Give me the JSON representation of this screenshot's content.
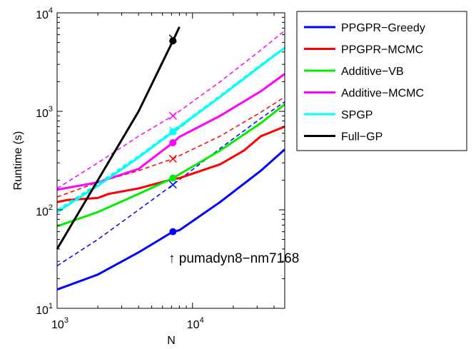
{
  "chart_data": {
    "type": "line",
    "xlabel": "N",
    "ylabel": "Runtime (s)",
    "xscale": "log",
    "yscale": "log",
    "xlim": [
      1000,
      48000
    ],
    "ylim": [
      10,
      10000
    ],
    "xticks": [
      {
        "base": "10",
        "exp": "3"
      },
      {
        "base": "10",
        "exp": "4"
      }
    ],
    "yticks": [
      {
        "base": "10",
        "exp": "1"
      },
      {
        "base": "10",
        "exp": "2"
      },
      {
        "base": "10",
        "exp": "3"
      },
      {
        "base": "10",
        "exp": "4"
      }
    ],
    "legend_position": "outside-right",
    "annotation": "↑ pumadyn8−nm7168",
    "annotation_x": 7168,
    "series": [
      {
        "name": "PPGPR−Greedy",
        "color": "#0000ff",
        "solid": {
          "x": [
            1000,
            2000,
            4000,
            7168,
            8000,
            16000,
            32000,
            48000
          ],
          "y": [
            15.5,
            22,
            37,
            60,
            62,
            120,
            250,
            410
          ]
        },
        "dashed": {
          "x": [
            1000,
            2000,
            4000,
            7168,
            16000,
            32000,
            48000
          ],
          "y": [
            27,
            50,
            100,
            180,
            420,
            850,
            1250
          ]
        },
        "dot": {
          "x": 7168,
          "y": 60
        },
        "cross": {
          "x": 7168,
          "y": 180
        }
      },
      {
        "name": "PPGPR−MCMC",
        "color": "#ff0000",
        "solid": {
          "x": [
            1000,
            1200,
            2000,
            2400,
            4000,
            7168,
            8000,
            16000,
            24000,
            32000,
            48000
          ],
          "y": [
            120,
            126,
            132,
            145,
            165,
            205,
            210,
            290,
            400,
            560,
            700
          ]
        },
        "dashed": {
          "x": [
            1000,
            2000,
            4000,
            7168,
            16000,
            32000,
            48000
          ],
          "y": [
            135,
            190,
            250,
            330,
            560,
            980,
            1400
          ]
        },
        "cross": {
          "x": 7168,
          "y": 330
        }
      },
      {
        "name": "Additive−VB",
        "color": "#00ee00",
        "solid": {
          "x": [
            1000,
            2000,
            4000,
            7168,
            16000,
            32000,
            48000
          ],
          "y": [
            68,
            95,
            145,
            210,
            400,
            760,
            1180
          ]
        },
        "dashed": {
          "x": [
            1000,
            2000,
            4000,
            7168,
            16000,
            32000,
            48000
          ],
          "y": [
            100,
            180,
            350,
            600,
            1400,
            2900,
            4400
          ]
        },
        "dot": {
          "x": 7168,
          "y": 210
        }
      },
      {
        "name": "Additive−MCMC",
        "color": "#ff00ff",
        "solid": {
          "x": [
            1000,
            2000,
            4000,
            7168,
            8000,
            16000,
            32000,
            48000
          ],
          "y": [
            160,
            190,
            260,
            480,
            550,
            900,
            1600,
            2400
          ]
        },
        "dashed": {
          "x": [
            1000,
            2000,
            4000,
            7168,
            16000,
            32000,
            48000
          ],
          "y": [
            165,
            300,
            560,
            900,
            2000,
            4200,
            6600
          ]
        },
        "dot": {
          "x": 7168,
          "y": 480
        },
        "cross": {
          "x": 7168,
          "y": 900
        }
      },
      {
        "name": "SPGP",
        "color": "#00ffff",
        "solid": {
          "x": [
            1000,
            2000,
            4000,
            7168,
            16000,
            32000,
            48000
          ],
          "y": [
            95,
            175,
            340,
            620,
            1400,
            2900,
            4400
          ]
        },
        "dashed": {
          "x": [
            1000,
            2000,
            4000,
            7168,
            16000,
            32000,
            48000
          ],
          "y": [
            100,
            185,
            355,
            640,
            1450,
            3000,
            4500
          ]
        },
        "dot": {
          "x": 7168,
          "y": 620
        },
        "cross": {
          "x": 7168,
          "y": 640
        }
      },
      {
        "name": "Full−GP",
        "color": "#000000",
        "solid": {
          "x": [
            1000,
            2000,
            4000,
            7168,
            8000
          ],
          "y": [
            40,
            200,
            1000,
            5200,
            7200
          ]
        },
        "dashed": {
          "x": [
            1000,
            2000,
            4000,
            7168,
            8000
          ],
          "y": [
            40,
            200,
            1000,
            5200,
            7200
          ]
        },
        "dot": {
          "x": 7168,
          "y": 5200
        },
        "cross": {
          "x": 7168,
          "y": 5500
        }
      }
    ]
  }
}
